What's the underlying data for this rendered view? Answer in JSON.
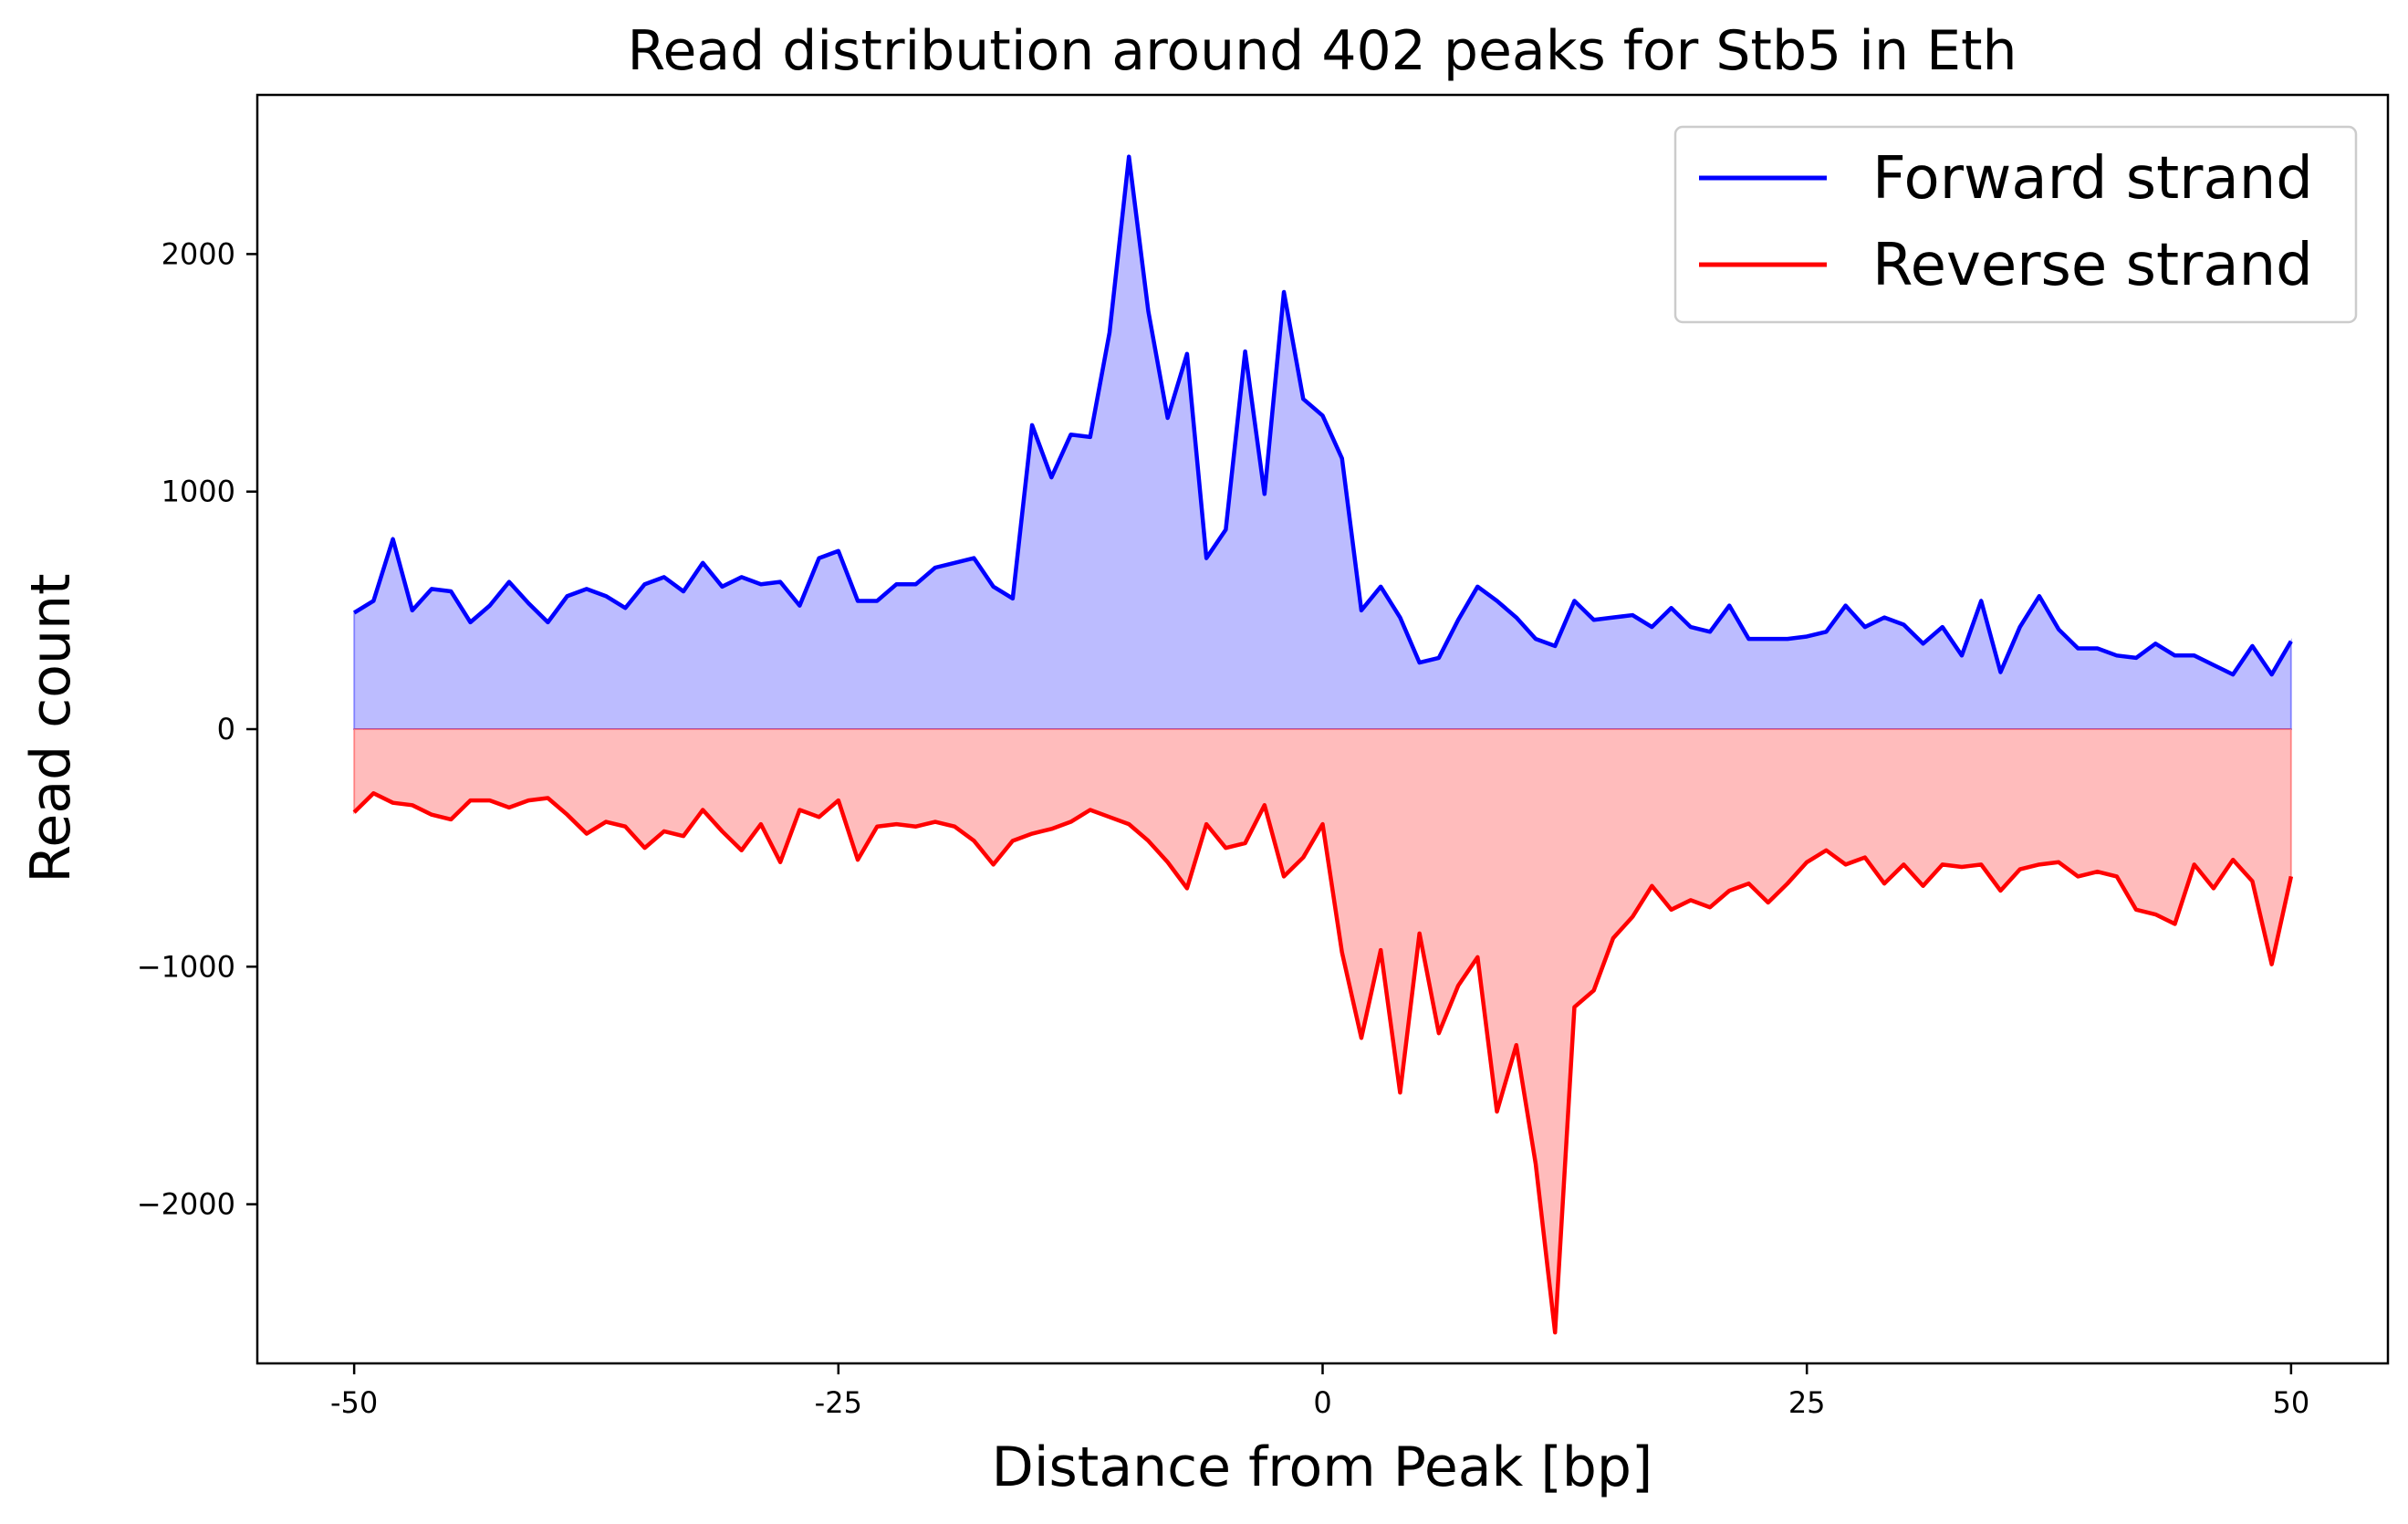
{
  "chart_data": {
    "type": "area",
    "title": "Read distribution around 402 peaks for Stb5 in Eth",
    "xlabel": "Distance from Peak [bp]",
    "ylabel": "Read count",
    "xlim": [
      -55,
      55
    ],
    "ylim": [
      -2670,
      2670
    ],
    "xticks": [
      -50,
      -25,
      0,
      25,
      50
    ],
    "xtick_labels": [
      "-50",
      "-25",
      "0",
      "25",
      "50"
    ],
    "yticks": [
      -2000,
      -1000,
      0,
      1000,
      2000
    ],
    "ytick_labels": [
      "−2000",
      "−1000",
      "0",
      "1000",
      "2000"
    ],
    "grid": false,
    "legend_position": "top-right",
    "x": [
      -50,
      -49,
      -48,
      -47,
      -46,
      -45,
      -44,
      -43,
      -42,
      -41,
      -40,
      -39,
      -38,
      -37,
      -36,
      -35,
      -34,
      -33,
      -32,
      -31,
      -30,
      -29,
      -28,
      -27,
      -26,
      -25,
      -24,
      -23,
      -22,
      -21,
      -20,
      -19,
      -18,
      -17,
      -16,
      -15,
      -14,
      -13,
      -12,
      -11,
      -10,
      -9,
      -8,
      -7,
      -6,
      -5,
      -4,
      -3,
      -2,
      -1,
      0,
      1,
      2,
      3,
      4,
      5,
      6,
      7,
      8,
      9,
      10,
      11,
      12,
      13,
      14,
      15,
      16,
      17,
      18,
      19,
      20,
      21,
      22,
      23,
      24,
      25,
      26,
      27,
      28,
      29,
      30,
      31,
      32,
      33,
      34,
      35,
      36,
      37,
      38,
      39,
      40,
      41,
      42,
      43,
      44,
      45,
      46,
      47,
      48,
      49,
      50
    ],
    "series": [
      {
        "name": "Forward strand",
        "color": "#0000ff",
        "fill": "#bcbcff",
        "values": [
          490,
          540,
          800,
          500,
          590,
          580,
          450,
          520,
          620,
          530,
          450,
          560,
          590,
          560,
          510,
          610,
          640,
          580,
          700,
          600,
          640,
          610,
          620,
          520,
          720,
          750,
          540,
          540,
          610,
          610,
          680,
          700,
          720,
          600,
          550,
          1280,
          1060,
          1240,
          1230,
          1670,
          2410,
          1760,
          1310,
          1580,
          720,
          840,
          1590,
          990,
          1840,
          1390,
          1320,
          1140,
          500,
          600,
          470,
          280,
          300,
          460,
          600,
          540,
          470,
          380,
          350,
          540,
          460,
          470,
          480,
          430,
          510,
          430,
          410,
          520,
          380,
          380,
          380,
          390,
          410,
          520,
          430,
          470,
          440,
          360,
          430,
          310,
          540,
          240,
          430,
          560,
          420,
          340,
          340,
          310,
          300,
          360,
          310,
          310,
          270,
          230,
          350,
          230,
          370
        ]
      },
      {
        "name": "Reverse strand",
        "color": "#ff0000",
        "fill": "#ffbcbc",
        "values": [
          -350,
          -270,
          -310,
          -320,
          -360,
          -380,
          -300,
          -300,
          -330,
          -300,
          -290,
          -360,
          -440,
          -390,
          -410,
          -500,
          -430,
          -450,
          -340,
          -430,
          -510,
          -400,
          -560,
          -340,
          -370,
          -300,
          -550,
          -410,
          -400,
          -410,
          -390,
          -410,
          -470,
          -570,
          -470,
          -440,
          -420,
          -390,
          -340,
          -370,
          -400,
          -470,
          -560,
          -670,
          -400,
          -500,
          -480,
          -320,
          -620,
          -540,
          -400,
          -940,
          -1300,
          -930,
          -1530,
          -860,
          -1280,
          -1080,
          -960,
          -1610,
          -1330,
          -1830,
          -2540,
          -1170,
          -1100,
          -880,
          -790,
          -660,
          -760,
          -720,
          -750,
          -680,
          -650,
          -730,
          -650,
          -560,
          -510,
          -570,
          -540,
          -650,
          -570,
          -660,
          -570,
          -580,
          -570,
          -680,
          -590,
          -570,
          -560,
          -620,
          -600,
          -620,
          -760,
          -780,
          -820,
          -570,
          -670,
          -550,
          -640,
          -990,
          -620
        ]
      }
    ]
  }
}
